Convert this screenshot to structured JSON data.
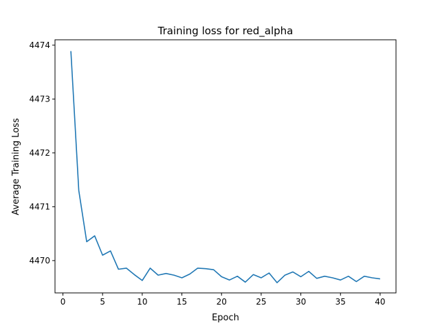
{
  "chart_data": {
    "type": "line",
    "title": "Training loss for red_alpha",
    "xlabel": "Epoch",
    "ylabel": "Average Training Loss",
    "xlim": [
      -1,
      42
    ],
    "ylim": [
      4469.4,
      4474.1
    ],
    "xticks": [
      0,
      5,
      10,
      15,
      20,
      25,
      30,
      35,
      40
    ],
    "yticks": [
      4470,
      4471,
      4472,
      4473,
      4474
    ],
    "grid": false,
    "series": [
      {
        "color": "#1f77b4",
        "x": [
          1,
          2,
          3,
          4,
          5,
          6,
          7,
          8,
          9,
          10,
          11,
          12,
          13,
          14,
          15,
          16,
          17,
          18,
          19,
          20,
          21,
          22,
          23,
          24,
          25,
          26,
          27,
          28,
          29,
          30,
          31,
          32,
          33,
          34,
          35,
          36,
          37,
          38,
          39,
          40
        ],
        "y": [
          4473.89,
          4471.3,
          4470.35,
          4470.46,
          4470.1,
          4470.18,
          4469.84,
          4469.86,
          4469.74,
          4469.63,
          4469.86,
          4469.73,
          4469.76,
          4469.73,
          4469.68,
          4469.75,
          4469.86,
          4469.85,
          4469.83,
          4469.7,
          4469.64,
          4469.71,
          4469.6,
          4469.74,
          4469.68,
          4469.77,
          4469.59,
          4469.73,
          4469.79,
          4469.7,
          4469.8,
          4469.67,
          4469.71,
          4469.68,
          4469.64,
          4469.71,
          4469.61,
          4469.71,
          4469.68,
          4469.66
        ]
      }
    ]
  }
}
